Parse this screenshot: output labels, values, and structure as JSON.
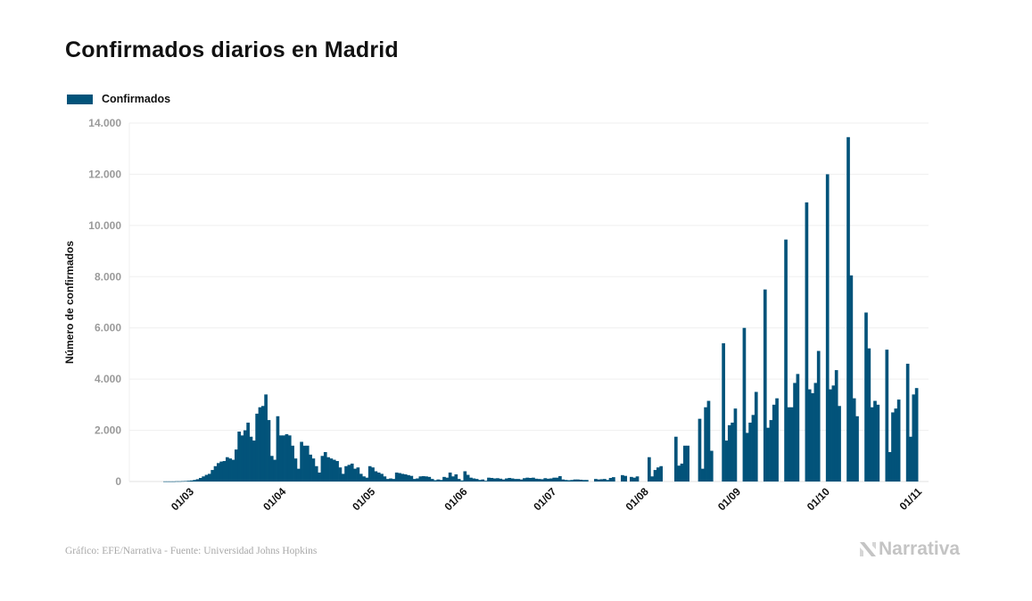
{
  "title": "Confirmados diarios en Madrid",
  "legend": {
    "label": "Confirmados",
    "color": "#02537a"
  },
  "source": "Gráfico: EFE/Narrativa - Fuente: Universidad Johns Hopkins",
  "logo": {
    "icon": "narrativa-logo-icon",
    "text": "Narrativa"
  },
  "chart_data": {
    "type": "bar",
    "title": "Confirmados diarios en Madrid",
    "xlabel": "",
    "ylabel": "Número de confirmados",
    "ylim": [
      0,
      14000
    ],
    "yticks": [
      0,
      2000,
      4000,
      6000,
      8000,
      10000,
      12000,
      14000
    ],
    "ytick_labels": [
      "0",
      "2.000",
      "4.000",
      "6.000",
      "8.000",
      "10.000",
      "12.000",
      "14.000"
    ],
    "xtick_labels": [
      "01/03",
      "01/04",
      "01/05",
      "01/06",
      "01/07",
      "01/08",
      "01/09",
      "01/10",
      "01/11"
    ],
    "xrange_days": [
      -19,
      245
    ],
    "grid": true,
    "legend_position": "top-left",
    "color": "#02537a",
    "start_day": -9,
    "series": [
      {
        "name": "Confirmados",
        "values": [
          5,
          5,
          5,
          5,
          10,
          10,
          15,
          20,
          30,
          40,
          60,
          90,
          140,
          200,
          260,
          300,
          450,
          600,
          720,
          780,
          800,
          950,
          900,
          850,
          1250,
          1950,
          1800,
          2000,
          2300,
          1750,
          1600,
          2650,
          2900,
          2950,
          3400,
          2400,
          1000,
          850,
          2550,
          1800,
          1800,
          1850,
          1800,
          1400,
          900,
          500,
          1550,
          1400,
          1400,
          1050,
          900,
          600,
          350,
          1000,
          1150,
          950,
          900,
          850,
          800,
          550,
          300,
          600,
          650,
          700,
          500,
          550,
          300,
          200,
          150,
          600,
          550,
          400,
          350,
          300,
          200,
          100,
          120,
          100,
          350,
          330,
          300,
          280,
          250,
          220,
          100,
          120,
          200,
          210,
          200,
          180,
          100,
          50,
          80,
          60,
          180,
          150,
          350,
          200,
          280,
          100,
          40,
          400,
          260,
          150,
          120,
          100,
          60,
          80,
          30,
          150,
          140,
          120,
          130,
          110,
          80,
          120,
          140,
          120,
          100,
          100,
          80,
          130,
          150,
          140,
          150,
          110,
          100,
          90,
          130,
          110,
          120,
          150,
          150,
          210,
          80,
          60,
          50,
          60,
          80,
          80,
          70,
          60,
          60,
          0,
          0,
          100,
          80,
          90,
          100,
          60,
          140,
          170,
          0,
          0,
          250,
          220,
          0,
          180,
          150,
          200,
          0,
          0,
          0,
          950,
          200,
          450,
          550,
          600,
          0,
          0,
          0,
          0,
          1750,
          620,
          700,
          1400,
          1400,
          0,
          0,
          0,
          2450,
          500,
          2900,
          3150,
          1200,
          0,
          0,
          0,
          5400,
          1600,
          2200,
          2300,
          2850,
          0,
          0,
          6000,
          1900,
          2300,
          2600,
          3500,
          0,
          0,
          7500,
          2100,
          2400,
          3000,
          3250,
          0,
          0,
          9450,
          2900,
          2900,
          3850,
          4200,
          0,
          0,
          10900,
          3600,
          3450,
          3850,
          5100,
          0,
          0,
          12000,
          3600,
          3750,
          4350,
          2950,
          0,
          0,
          13450,
          8050,
          3250,
          2550,
          0,
          0,
          6600,
          5200,
          2900,
          3150,
          3000,
          0,
          0,
          5150,
          1150,
          2700,
          2850,
          3200,
          0,
          0,
          4600,
          1750,
          3400,
          3650
        ]
      }
    ]
  }
}
